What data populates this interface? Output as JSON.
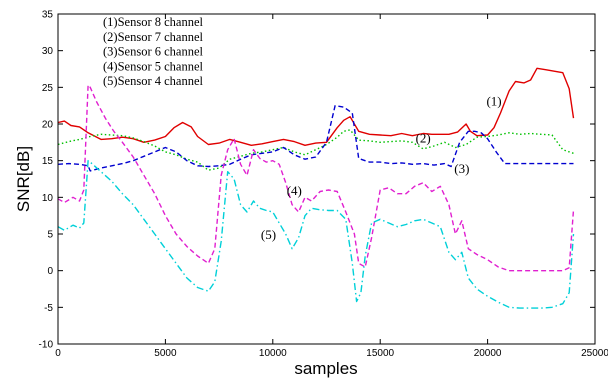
{
  "chart_data": {
    "type": "line",
    "title": "",
    "xlabel": "samples",
    "ylabel": "SNR[dB]",
    "xlim": [
      0,
      25000
    ],
    "ylim": [
      -10,
      35
    ],
    "xticks": [
      0,
      5000,
      10000,
      15000,
      20000,
      25000
    ],
    "yticks": [
      -10,
      -5,
      0,
      5,
      10,
      15,
      20,
      25,
      30,
      35
    ],
    "grid": false,
    "legend_position": "top-left",
    "legend": [
      "(1)Sensor 8 channel",
      "(2)Sensor 7 channel",
      "(3)Sensor 6 channel",
      "(4)Sensor 5 channel",
      "(5)Sensor 4 channel"
    ],
    "annotations": [
      {
        "text": "(1)",
        "x": 20300,
        "y": 22.5
      },
      {
        "text": "(2)",
        "x": 17000,
        "y": 17.5
      },
      {
        "text": "(3)",
        "x": 18800,
        "y": 13.3
      },
      {
        "text": "(4)",
        "x": 11000,
        "y": 10.3
      },
      {
        "text": "(5)",
        "x": 9800,
        "y": 4.3
      }
    ],
    "series": [
      {
        "label": "(1)",
        "color": "#e00000",
        "dash": "solid",
        "x": [
          0,
          300,
          600,
          1000,
          1400,
          2000,
          2500,
          3000,
          3500,
          4000,
          4500,
          5000,
          5400,
          5800,
          6200,
          6500,
          7000,
          7500,
          8000,
          8500,
          9000,
          9500,
          10000,
          10500,
          11000,
          11500,
          12000,
          12500,
          13000,
          13300,
          13600,
          14000,
          14500,
          15000,
          15500,
          16000,
          16500,
          17000,
          17400,
          17800,
          18200,
          18600,
          19000,
          19200,
          19500,
          20000,
          20300,
          20600,
          21000,
          21300,
          21700,
          22000,
          22300,
          22700,
          23100,
          23500,
          23800,
          24000
        ],
        "y": [
          20.2,
          20.4,
          19.8,
          19.6,
          18.8,
          17.9,
          18.0,
          18.2,
          18.0,
          17.5,
          17.8,
          18.3,
          19.5,
          20.2,
          19.6,
          18.3,
          17.2,
          17.4,
          17.9,
          17.5,
          17.1,
          17.3,
          17.6,
          17.9,
          17.6,
          17.1,
          17.4,
          17.5,
          19.5,
          20.5,
          21.0,
          19.0,
          18.6,
          18.5,
          18.4,
          18.7,
          18.4,
          18.7,
          18.6,
          18.6,
          18.6,
          18.9,
          20.0,
          19.0,
          18.4,
          18.5,
          19.5,
          21.5,
          24.5,
          25.8,
          25.6,
          26.0,
          27.6,
          27.4,
          27.2,
          27.0,
          24.8,
          20.8
        ]
      },
      {
        "label": "(2)",
        "color": "#00c000",
        "dash": "dotted",
        "x": [
          0,
          500,
          1000,
          1500,
          2000,
          2500,
          3000,
          3500,
          4000,
          4500,
          5000,
          5500,
          6000,
          6500,
          7000,
          7500,
          8000,
          8500,
          9000,
          9500,
          10000,
          10500,
          11000,
          11500,
          12000,
          12500,
          13000,
          13300,
          13600,
          14000,
          14500,
          15000,
          15500,
          16000,
          16500,
          17000,
          17500,
          18000,
          18500,
          19000,
          19500,
          20000,
          20500,
          21000,
          21500,
          22000,
          22500,
          23000,
          23500,
          24000
        ],
        "y": [
          17.2,
          17.6,
          17.9,
          18.3,
          18.6,
          18.5,
          18.4,
          18.1,
          17.6,
          17.0,
          16.2,
          15.8,
          15.2,
          14.8,
          13.7,
          14.0,
          15.2,
          15.6,
          16.0,
          16.2,
          16.5,
          16.8,
          16.2,
          15.8,
          16.5,
          17.2,
          18.2,
          19.0,
          19.2,
          17.8,
          17.7,
          17.5,
          17.6,
          17.7,
          17.5,
          16.6,
          17.0,
          17.5,
          16.8,
          17.2,
          18.2,
          18.3,
          18.5,
          18.8,
          18.6,
          18.7,
          18.6,
          18.5,
          16.5,
          16.0
        ]
      },
      {
        "label": "(3)",
        "color": "#0000d0",
        "dash": "dashed",
        "x": [
          0,
          500,
          1000,
          1400,
          1500,
          2000,
          2500,
          3000,
          3500,
          4000,
          4500,
          5000,
          5500,
          6000,
          6500,
          7000,
          7500,
          8000,
          8500,
          9000,
          9500,
          10000,
          10500,
          11000,
          11500,
          12000,
          12500,
          12900,
          13300,
          13700,
          14000,
          14500,
          15000,
          15500,
          16000,
          16500,
          17000,
          17500,
          18000,
          18300,
          18700,
          19100,
          19400,
          19700,
          20000,
          20400,
          20800,
          21200,
          21600,
          22000,
          22500,
          23000,
          23500,
          24000
        ],
        "y": [
          14.5,
          14.6,
          14.5,
          14.3,
          13.6,
          14.0,
          14.3,
          14.6,
          15.0,
          15.6,
          16.2,
          16.8,
          16.2,
          15.0,
          14.3,
          14.2,
          14.3,
          14.5,
          15.2,
          15.8,
          16.0,
          16.2,
          16.8,
          15.8,
          15.2,
          15.5,
          17.5,
          22.5,
          22.3,
          21.5,
          15.3,
          14.8,
          14.8,
          14.6,
          14.7,
          14.5,
          14.6,
          14.4,
          14.6,
          14.2,
          17.5,
          19.0,
          19.0,
          18.8,
          18.0,
          16.2,
          14.6,
          14.6,
          14.6,
          14.6,
          14.6,
          14.6,
          14.6,
          14.6
        ]
      },
      {
        "label": "(4)",
        "color": "#e020d0",
        "dash": "dashed",
        "x": [
          0,
          300,
          700,
          1000,
          1200,
          1400,
          1500,
          1800,
          2200,
          2600,
          3000,
          3500,
          4000,
          4500,
          5000,
          5500,
          6000,
          6500,
          7000,
          7300,
          7600,
          7900,
          8200,
          8500,
          8800,
          9100,
          9400,
          9700,
          10000,
          10300,
          10600,
          10900,
          11200,
          11500,
          11800,
          12200,
          12600,
          13000,
          13400,
          13800,
          14000,
          14300,
          14600,
          15000,
          15400,
          15800,
          16200,
          16600,
          17000,
          17400,
          17800,
          18200,
          18500,
          18800,
          19100,
          19500,
          20000,
          20500,
          21000,
          21500,
          22000,
          22500,
          23000,
          23500,
          23800,
          24000
        ],
        "y": [
          9.8,
          9.3,
          10.0,
          9.5,
          11.0,
          25.3,
          25.0,
          23.0,
          20.8,
          19.0,
          17.5,
          15.5,
          13.0,
          10.5,
          7.5,
          5.0,
          3.3,
          2.0,
          1.0,
          3.0,
          13.0,
          16.5,
          18.0,
          14.5,
          13.0,
          16.5,
          15.3,
          14.8,
          15.0,
          14.5,
          12.0,
          9.0,
          8.0,
          10.0,
          9.5,
          10.8,
          11.0,
          10.8,
          8.0,
          5.0,
          1.0,
          0.5,
          4.5,
          11.0,
          11.3,
          10.5,
          10.5,
          11.5,
          12.0,
          10.8,
          11.5,
          9.0,
          5.0,
          6.8,
          3.0,
          2.2,
          1.5,
          0.5,
          0.0,
          0.0,
          0.0,
          0.0,
          0.0,
          0.0,
          0.4,
          8.3
        ]
      },
      {
        "label": "(5)",
        "color": "#00d0d8",
        "dash": "dashdot",
        "x": [
          0,
          300,
          700,
          1000,
          1200,
          1400,
          1500,
          2000,
          2500,
          3000,
          3500,
          4000,
          4500,
          5000,
          5500,
          6000,
          6500,
          7000,
          7300,
          7600,
          7900,
          8200,
          8500,
          8800,
          9100,
          9400,
          9700,
          10000,
          10300,
          10600,
          10900,
          11200,
          11500,
          11800,
          12200,
          12600,
          13000,
          13400,
          13700,
          13900,
          14100,
          14300,
          14600,
          15000,
          15400,
          15800,
          16200,
          16600,
          17000,
          17400,
          17800,
          18200,
          18500,
          18800,
          19100,
          19500,
          20000,
          20500,
          21000,
          21500,
          22000,
          22500,
          23000,
          23500,
          23800,
          24000
        ],
        "y": [
          6.0,
          5.5,
          6.2,
          5.8,
          6.5,
          15.0,
          14.8,
          13.5,
          12.2,
          10.5,
          9.0,
          7.0,
          5.0,
          3.0,
          1.0,
          -1.0,
          -2.3,
          -2.8,
          -1.5,
          4.0,
          13.5,
          12.5,
          9.0,
          8.0,
          9.5,
          8.5,
          8.2,
          8.0,
          6.5,
          5.0,
          3.0,
          4.5,
          7.5,
          8.5,
          8.3,
          8.2,
          8.2,
          7.0,
          1.0,
          -4.2,
          -3.0,
          2.0,
          6.5,
          7.0,
          6.5,
          6.0,
          6.3,
          6.8,
          7.0,
          6.5,
          6.0,
          2.5,
          1.5,
          2.5,
          -1.0,
          -2.5,
          -3.5,
          -4.3,
          -5.0,
          -5.1,
          -5.1,
          -5.1,
          -5.0,
          -4.5,
          -3.0,
          5.0
        ]
      }
    ]
  }
}
